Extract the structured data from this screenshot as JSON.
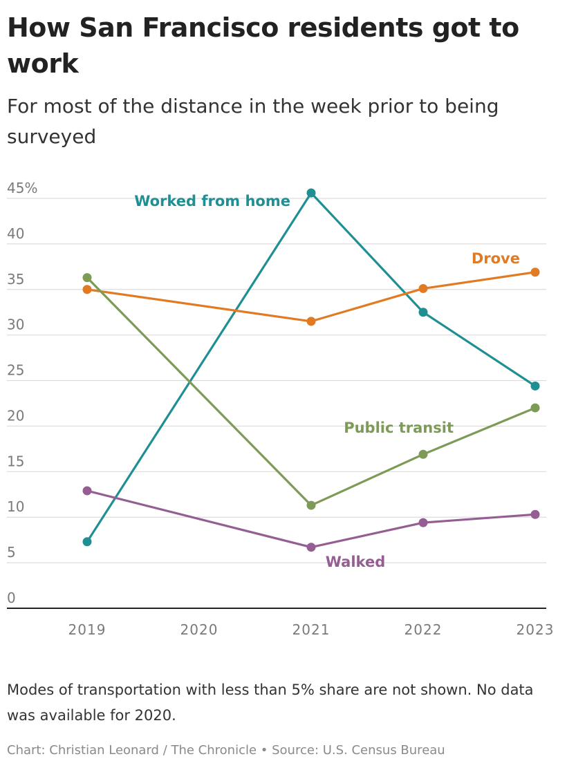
{
  "title": "How San Francisco residents got to work",
  "subtitle": "For most of the distance in the week prior to being surveyed",
  "note": "Modes of transportation with less than 5% share are not shown. No data was available for 2020.",
  "credit": "Chart: Christian Leonard / The Chronicle • Source: U.S. Census Bureau",
  "chart_data": {
    "type": "line",
    "x": [
      2019,
      2020,
      2021,
      2022,
      2023
    ],
    "xlim": [
      2019,
      2023
    ],
    "ylim": [
      0,
      45
    ],
    "y_ticks": [
      0,
      5,
      10,
      15,
      20,
      25,
      30,
      35,
      40,
      45
    ],
    "y_tick_labels": [
      "0",
      "5",
      "10",
      "15",
      "20",
      "25",
      "30",
      "35",
      "40",
      "45%"
    ],
    "x_tick_labels": [
      "2019",
      "2020",
      "2021",
      "2022",
      "2023"
    ],
    "grid": true,
    "legend": "direct labels",
    "series": [
      {
        "name": "Worked from home",
        "color": "#1f8f93",
        "values": [
          7.3,
          null,
          45.6,
          32.5,
          24.4
        ]
      },
      {
        "name": "Drove",
        "color": "#e07b24",
        "values": [
          35.0,
          null,
          31.5,
          35.1,
          36.9
        ]
      },
      {
        "name": "Public transit",
        "color": "#7e9a57",
        "values": [
          36.3,
          null,
          11.3,
          16.9,
          22.0
        ]
      },
      {
        "name": "Walked",
        "color": "#955e92",
        "values": [
          12.9,
          null,
          6.7,
          9.4,
          10.3
        ]
      }
    ]
  }
}
